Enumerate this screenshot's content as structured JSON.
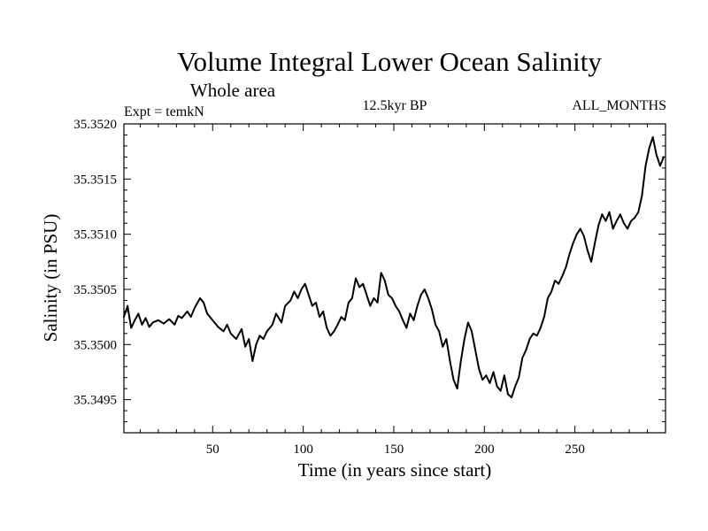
{
  "chart_data": {
    "type": "line",
    "title": "Volume Integral Lower Ocean Salinity",
    "subtitle": "Whole area",
    "left_note": "Expt = temkN",
    "center_note": "12.5kyr BP",
    "right_note": "ALL_MONTHS",
    "xlabel": "Time (in years since start)",
    "ylabel": "Salinity (in PSU)",
    "xlim": [
      1,
      300
    ],
    "ylim": [
      35.3492,
      35.352
    ],
    "x_ticks": [
      50,
      100,
      150,
      200,
      250
    ],
    "x_tick_labels": [
      "50",
      "100",
      "150",
      "200",
      "250"
    ],
    "y_ticks": [
      35.3495,
      35.35,
      35.3505,
      35.351,
      35.3515,
      35.352
    ],
    "y_tick_labels": [
      "35.3495",
      "35.3500",
      "35.3505",
      "35.3510",
      "35.3515",
      "35.3520"
    ],
    "line_color": "#000000",
    "series": [
      {
        "name": "Salinity",
        "x": [
          1,
          3,
          5,
          7,
          9,
          11,
          13,
          15,
          17,
          20,
          23,
          26,
          29,
          31,
          33,
          36,
          38,
          40,
          43,
          45,
          47,
          50,
          53,
          56,
          58,
          60,
          63,
          66,
          68,
          70,
          72,
          74,
          76,
          78,
          80,
          83,
          85,
          88,
          90,
          93,
          95,
          97,
          99,
          101,
          103,
          105,
          107,
          109,
          111,
          113,
          115,
          117,
          119,
          121,
          123,
          125,
          127,
          129,
          131,
          133,
          135,
          137,
          139,
          141,
          143,
          145,
          147,
          149,
          151,
          153,
          155,
          157,
          159,
          161,
          163,
          165,
          167,
          169,
          171,
          173,
          175,
          177,
          179,
          181,
          183,
          185,
          187,
          189,
          191,
          193,
          195,
          197,
          199,
          201,
          203,
          205,
          207,
          209,
          211,
          213,
          215,
          217,
          219,
          221,
          223,
          225,
          227,
          229,
          231,
          233,
          235,
          237,
          239,
          241,
          243,
          245,
          247,
          249,
          251,
          253,
          255,
          257,
          259,
          261,
          263,
          265,
          267,
          269,
          271,
          273,
          275,
          277,
          279,
          281,
          283,
          285,
          287,
          289,
          291,
          293,
          295,
          297,
          299
        ],
        "values": [
          35.35025,
          35.35035,
          35.35015,
          35.35022,
          35.35028,
          35.35018,
          35.35024,
          35.35016,
          35.3502,
          35.35022,
          35.35019,
          35.35023,
          35.35018,
          35.35026,
          35.35024,
          35.3503,
          35.35025,
          35.35033,
          35.35042,
          35.35038,
          35.35028,
          35.35022,
          35.35016,
          35.35012,
          35.35018,
          35.3501,
          35.35005,
          35.35014,
          35.34998,
          35.35005,
          35.34985,
          35.35,
          35.35008,
          35.35005,
          35.35012,
          35.35018,
          35.35028,
          35.3502,
          35.35035,
          35.3504,
          35.35048,
          35.35042,
          35.3505,
          35.35055,
          35.35045,
          35.35035,
          35.35038,
          35.35025,
          35.3503,
          35.35015,
          35.35008,
          35.35012,
          35.35018,
          35.35025,
          35.35022,
          35.35038,
          35.35042,
          35.3506,
          35.35052,
          35.35055,
          35.35045,
          35.35035,
          35.35042,
          35.35038,
          35.35065,
          35.35058,
          35.35045,
          35.35042,
          35.35035,
          35.3503,
          35.35022,
          35.35015,
          35.35028,
          35.35022,
          35.35035,
          35.35045,
          35.3505,
          35.35042,
          35.35032,
          35.35018,
          35.35012,
          35.34998,
          35.35005,
          35.34985,
          35.34968,
          35.3496,
          35.34985,
          35.35005,
          35.3502,
          35.35012,
          35.34995,
          35.34978,
          35.34968,
          35.34972,
          35.34965,
          35.34975,
          35.34962,
          35.34958,
          35.34972,
          35.34955,
          35.34952,
          35.34962,
          35.3497,
          35.34988,
          35.34995,
          35.35005,
          35.3501,
          35.35008,
          35.35015,
          35.35025,
          35.35042,
          35.35048,
          35.35058,
          35.35055,
          35.35062,
          35.3507,
          35.35082,
          35.35092,
          35.351,
          35.35105,
          35.35098,
          35.35085,
          35.35075,
          35.35092,
          35.35108,
          35.35118,
          35.35112,
          35.3512,
          35.35105,
          35.35112,
          35.35118,
          35.3511,
          35.35105,
          35.35112,
          35.35115,
          35.3512,
          35.35135,
          35.35162,
          35.35178,
          35.35188,
          35.35172,
          35.35162,
          35.3517
        ]
      }
    ]
  }
}
